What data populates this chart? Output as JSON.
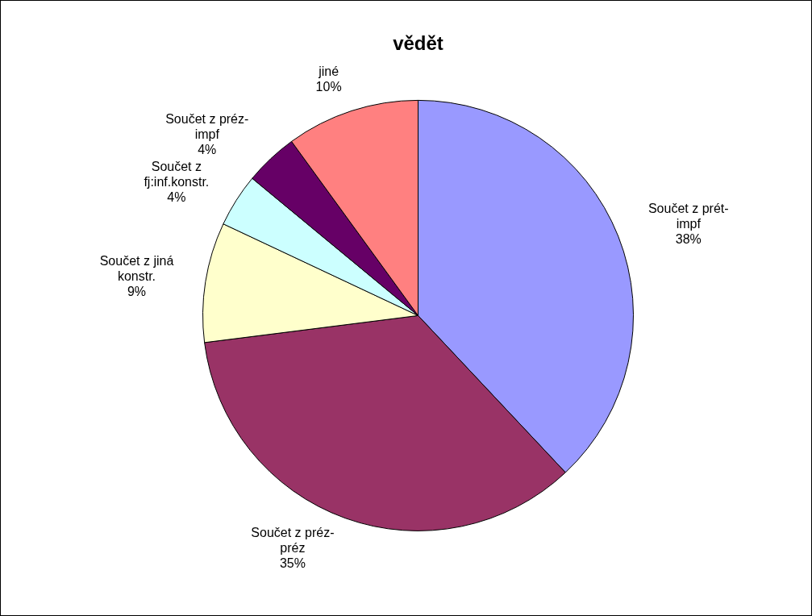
{
  "chart_data": {
    "type": "pie",
    "title": "vědět",
    "categories": [
      "Součet z prét-\nimpf",
      "Součet z préz-\npréz",
      "Součet z jiná\nkonstr.",
      "Součet z\nfj:inf.konstr.",
      "Součet z préz-\nimpf",
      "jiné"
    ],
    "values": [
      38,
      35,
      9,
      4,
      4,
      10
    ],
    "colors": [
      "#9999ff",
      "#993366",
      "#ffffcc",
      "#ccffff",
      "#660066",
      "#ff8080"
    ],
    "value_labels": [
      "38%",
      "35%",
      "9%",
      "4%",
      "4%",
      "10%"
    ],
    "legend": false
  }
}
